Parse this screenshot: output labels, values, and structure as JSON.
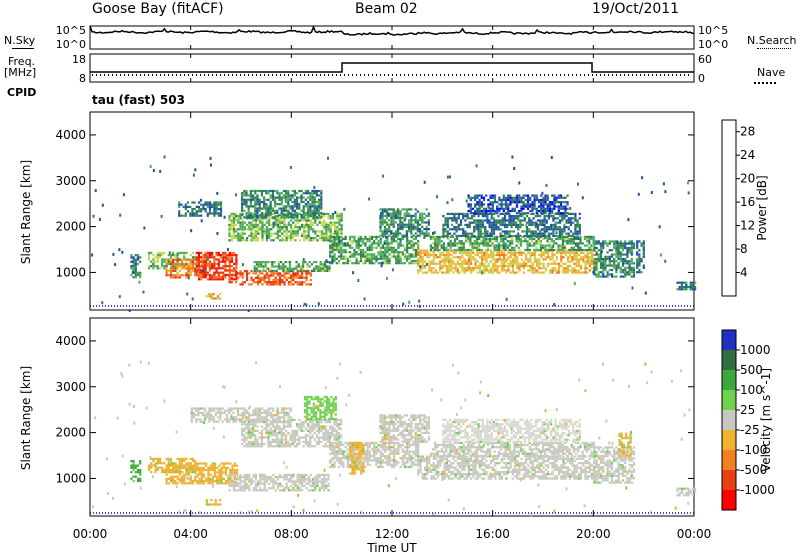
{
  "header": {
    "station": "Goose Bay (fitACF)",
    "beam": "Beam 02",
    "date": "19/Oct/2011"
  },
  "top_panels": {
    "nsky_label": "N.Sky",
    "nsky_ticks": [
      "10^5",
      "10^0"
    ],
    "nsearch_label": "N.Search",
    "nsearch_ticks": [
      "10^5",
      "10^0"
    ],
    "freq_label_1": "Freq.",
    "freq_label_2": "[MHz]",
    "freq_ticks": [
      "18",
      "8"
    ],
    "nave_label": "Nave",
    "nave_ticks": [
      "60",
      "0"
    ],
    "cpid_label": "CPID",
    "cpid_text": "tau (fast) 503"
  },
  "colors": {
    "power_scale": [
      "#0000ff",
      "#1f4fa8",
      "#2f7f4f",
      "#4cae5c",
      "#c8d84a",
      "#f0b030",
      "#f07820",
      "#e83010",
      "#ff0000"
    ],
    "velocity_scale": [
      "#2030c0",
      "#2f6f3f",
      "#3ca83c",
      "#70d050",
      "#c8c8c0",
      "#f0b030",
      "#f08020",
      "#e84010",
      "#ff0000"
    ]
  },
  "chart_data": [
    {
      "type": "heatmap",
      "title": "",
      "xlabel": "Time UT",
      "ylabel": "Slant Range [km]",
      "x_tick_labels": [
        "00:00",
        "04:00",
        "08:00",
        "12:00",
        "16:00",
        "20:00",
        "00:00"
      ],
      "y_tick_labels": [
        "1000",
        "2000",
        "3000",
        "4000"
      ],
      "xlim_hours": [
        0,
        24
      ],
      "ylim_km": [
        180,
        4500
      ],
      "colorbar_label": "Power [dB]",
      "colorbar_ticks": [
        "4",
        "8",
        "12",
        "16",
        "20",
        "24",
        "28"
      ],
      "clim": [
        0,
        30
      ],
      "regions": [
        {
          "t0": 1.6,
          "t1": 2.0,
          "r0": 900,
          "r1": 1400,
          "v": 8
        },
        {
          "t0": 2.3,
          "t1": 4.2,
          "r0": 1100,
          "r1": 1450,
          "v": 12
        },
        {
          "t0": 3.0,
          "t1": 4.6,
          "r0": 900,
          "r1": 1300,
          "v": 22
        },
        {
          "t0": 4.2,
          "t1": 5.8,
          "r0": 850,
          "r1": 1450,
          "v": 26
        },
        {
          "t0": 5.5,
          "t1": 8.8,
          "r0": 750,
          "r1": 1050,
          "v": 24
        },
        {
          "t0": 6.5,
          "t1": 9.5,
          "r0": 1050,
          "r1": 1250,
          "v": 10
        },
        {
          "t0": 3.5,
          "t1": 5.2,
          "r0": 2250,
          "r1": 2550,
          "v": 6
        },
        {
          "t0": 5.5,
          "t1": 10.0,
          "r0": 1700,
          "r1": 2300,
          "v": 12
        },
        {
          "t0": 6.0,
          "t1": 9.2,
          "r0": 2200,
          "r1": 2800,
          "v": 8
        },
        {
          "t0": 9.5,
          "t1": 13.0,
          "r0": 1200,
          "r1": 1800,
          "v": 10
        },
        {
          "t0": 11.5,
          "t1": 13.5,
          "r0": 1800,
          "r1": 2400,
          "v": 8
        },
        {
          "t0": 13.0,
          "t1": 20.0,
          "r0": 1000,
          "r1": 1500,
          "v": 18
        },
        {
          "t0": 13.5,
          "t1": 20.0,
          "r0": 1500,
          "r1": 1800,
          "v": 10
        },
        {
          "t0": 14.0,
          "t1": 19.5,
          "r0": 1800,
          "r1": 2300,
          "v": 6
        },
        {
          "t0": 15.0,
          "t1": 19.0,
          "r0": 2300,
          "r1": 2700,
          "v": 4
        },
        {
          "t0": 20.0,
          "t1": 21.6,
          "r0": 900,
          "r1": 1700,
          "v": 8
        },
        {
          "t0": 21.7,
          "t1": 22.0,
          "r0": 1000,
          "r1": 1700,
          "v": 6
        },
        {
          "t0": 23.3,
          "t1": 24.0,
          "r0": 650,
          "r1": 800,
          "v": 6
        },
        {
          "t0": 4.6,
          "t1": 5.2,
          "r0": 450,
          "r1": 550,
          "v": 18
        }
      ]
    },
    {
      "type": "heatmap",
      "title": "",
      "xlabel": "Time UT",
      "ylabel": "Slant Range [km]",
      "x_tick_labels": [
        "00:00",
        "04:00",
        "08:00",
        "12:00",
        "16:00",
        "20:00",
        "00:00"
      ],
      "y_tick_labels": [
        "1000",
        "2000",
        "3000",
        "4000"
      ],
      "xlim_hours": [
        0,
        24
      ],
      "ylim_km": [
        180,
        4500
      ],
      "colorbar_label": "Velocity [m s^-1]",
      "colorbar_ticks": [
        "1000",
        "500",
        "100",
        "25",
        "-25",
        "-100",
        "-500",
        "-1000"
      ],
      "regions": [
        {
          "t0": 1.6,
          "t1": 2.0,
          "r0": 950,
          "r1": 1400,
          "v": "g"
        },
        {
          "t0": 2.3,
          "t1": 4.2,
          "r0": 1150,
          "r1": 1450,
          "v": "o"
        },
        {
          "t0": 3.0,
          "t1": 5.8,
          "r0": 900,
          "r1": 1350,
          "v": "o"
        },
        {
          "t0": 5.5,
          "t1": 9.5,
          "r0": 750,
          "r1": 1100,
          "v": "gray"
        },
        {
          "t0": 4.0,
          "t1": 8.0,
          "r0": 2250,
          "r1": 2550,
          "v": "gray"
        },
        {
          "t0": 6.0,
          "t1": 10.0,
          "r0": 1700,
          "r1": 2300,
          "v": "gray"
        },
        {
          "t0": 8.5,
          "t1": 9.8,
          "r0": 2300,
          "r1": 2800,
          "v": "lg"
        },
        {
          "t0": 9.5,
          "t1": 13.0,
          "r0": 1250,
          "r1": 1800,
          "v": "gray"
        },
        {
          "t0": 10.3,
          "t1": 10.9,
          "r0": 1100,
          "r1": 1800,
          "v": "o"
        },
        {
          "t0": 11.5,
          "t1": 13.5,
          "r0": 1800,
          "r1": 2400,
          "v": "gray"
        },
        {
          "t0": 13.0,
          "t1": 20.0,
          "r0": 1000,
          "r1": 1500,
          "v": "gray"
        },
        {
          "t0": 13.5,
          "t1": 20.0,
          "r0": 1500,
          "r1": 1800,
          "v": "gray"
        },
        {
          "t0": 14.0,
          "t1": 19.5,
          "r0": 1800,
          "r1": 2300,
          "v": "lgray"
        },
        {
          "t0": 20.0,
          "t1": 21.6,
          "r0": 900,
          "r1": 1700,
          "v": "gray"
        },
        {
          "t0": 21.0,
          "t1": 21.5,
          "r0": 1500,
          "r1": 2000,
          "v": "o"
        },
        {
          "t0": 23.3,
          "t1": 24.0,
          "r0": 650,
          "r1": 800,
          "v": "gray"
        },
        {
          "t0": 4.6,
          "t1": 5.2,
          "r0": 450,
          "r1": 550,
          "v": "o"
        }
      ]
    }
  ]
}
